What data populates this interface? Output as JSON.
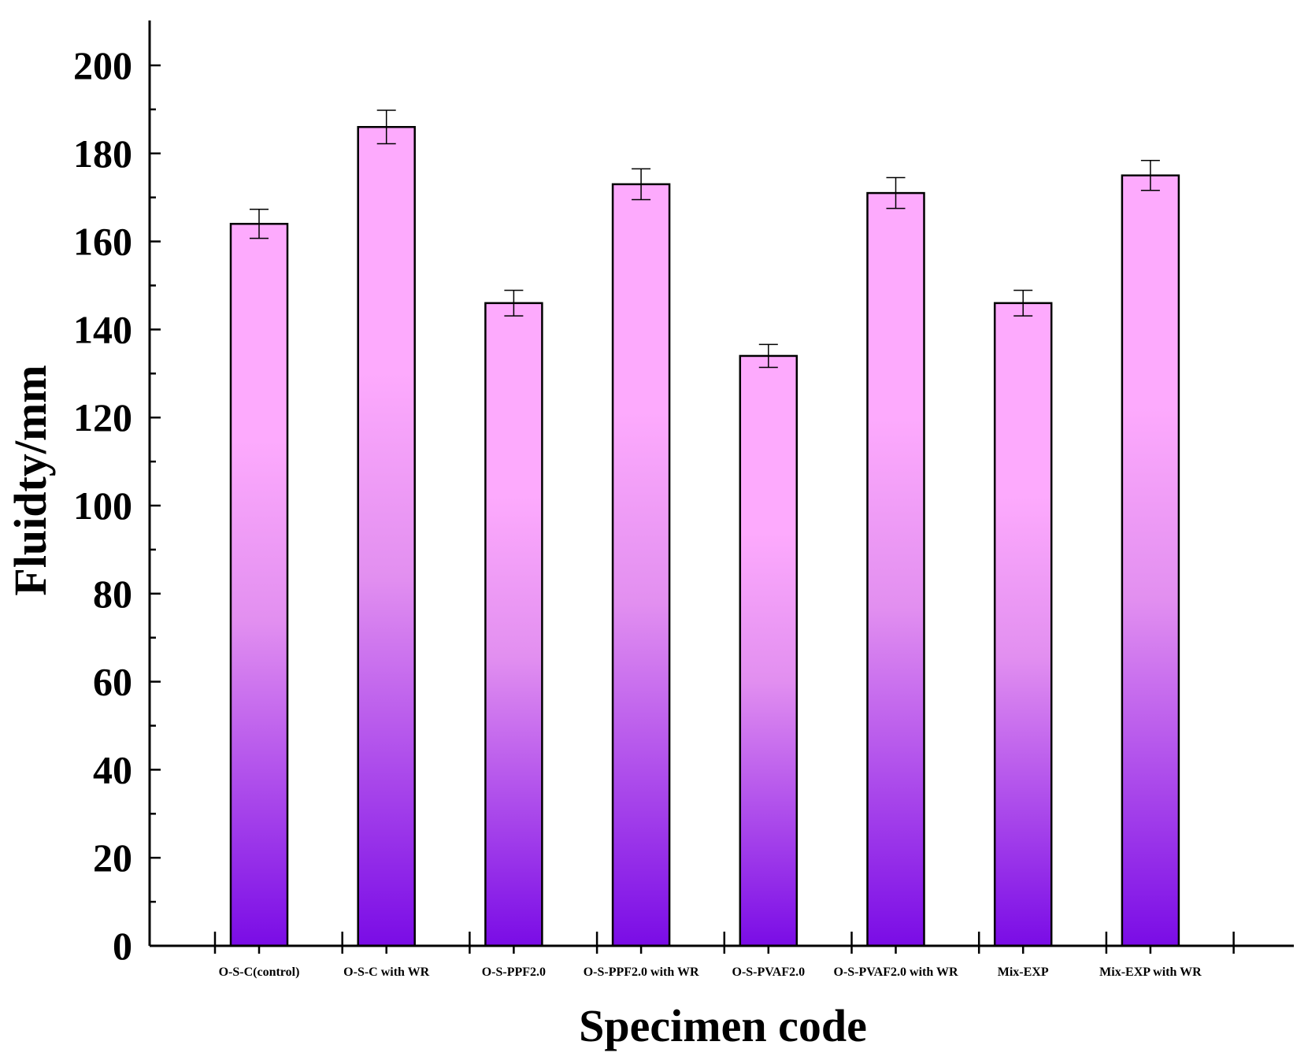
{
  "chart_data": {
    "type": "bar",
    "title": "",
    "xlabel": "Specimen code",
    "ylabel": "Fluidty/mm",
    "ylim": [
      0,
      210
    ],
    "yticks": [
      0,
      20,
      40,
      60,
      80,
      100,
      120,
      140,
      160,
      180,
      200
    ],
    "categories": [
      "O-S-C(control)",
      "O-S-C with WR",
      "O-S-PPF2.0",
      "O-S-PPF2.0 with WR",
      "O-S-PVAF2.0",
      "O-S-PVAF2.0 with WR",
      "Mix-EXP",
      "Mix-EXP with WR"
    ],
    "values": [
      164,
      186,
      146,
      173,
      134,
      171,
      146,
      175
    ],
    "errors": [
      3.3,
      3.8,
      2.9,
      3.5,
      2.6,
      3.5,
      2.9,
      3.4
    ],
    "grid": false,
    "legend": "none",
    "colors": {
      "bar_top": "#fdaafd",
      "bar_mid": "#e28ff0",
      "bar_bottom": "#7a0ce6",
      "outline": "#000000"
    }
  }
}
